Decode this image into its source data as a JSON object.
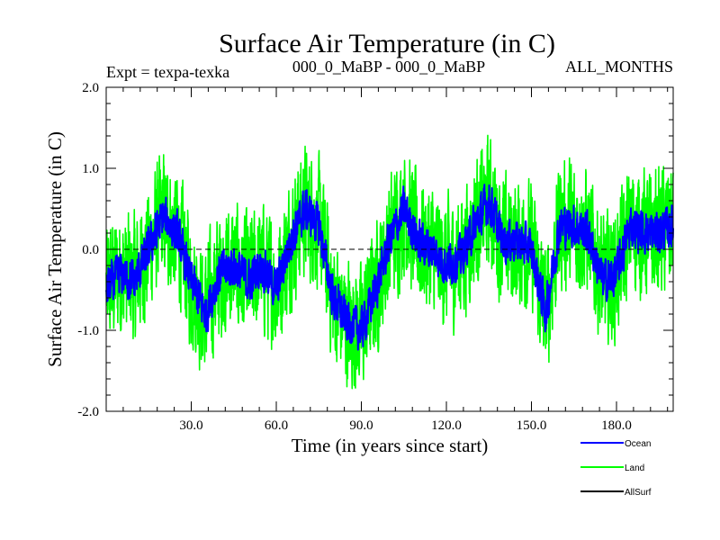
{
  "chart_data": {
    "type": "line",
    "title": "Surface Air Temperature (in C)",
    "subtitle_left": "Expt = texpa-texka",
    "subtitle_center": "000_0_MaBP - 000_0_MaBP",
    "subtitle_right": "ALL_MONTHS",
    "xlabel": "Time (in years since start)",
    "ylabel": "Surface Air Temperature (in C)",
    "xlim": [
      0,
      200
    ],
    "ylim": [
      -2.0,
      2.0
    ],
    "x_ticks": [
      30,
      60,
      90,
      120,
      150,
      180
    ],
    "x_tick_labels": [
      "30.0",
      "60.0",
      "90.0",
      "120.0",
      "150.0",
      "180.0"
    ],
    "y_ticks": [
      -2,
      -1,
      0,
      1,
      2
    ],
    "y_tick_labels": [
      "-2.0",
      "-1.0",
      "0.0",
      "1.0",
      "2.0"
    ],
    "zero_line": true,
    "series": [
      {
        "name": "Land",
        "color": "#00ff00",
        "x": [
          0,
          5,
          10,
          15,
          20,
          25,
          30,
          35,
          40,
          45,
          50,
          55,
          60,
          65,
          70,
          75,
          80,
          85,
          90,
          95,
          100,
          105,
          110,
          115,
          120,
          125,
          130,
          135,
          140,
          145,
          150,
          155,
          160,
          165,
          170,
          175,
          180,
          185,
          190,
          195,
          200
        ],
        "values": [
          -0.5,
          -0.3,
          -0.4,
          0.0,
          0.4,
          0.2,
          -0.4,
          -0.8,
          -0.3,
          -0.2,
          -0.4,
          -0.2,
          -0.5,
          0.1,
          0.5,
          0.3,
          -0.6,
          -0.9,
          -1.0,
          -0.5,
          0.1,
          0.5,
          0.1,
          0.0,
          -0.2,
          -0.1,
          0.3,
          0.6,
          0.1,
          0.1,
          0.0,
          -0.8,
          0.3,
          0.3,
          0.2,
          -0.4,
          -0.3,
          0.3,
          0.2,
          0.2,
          0.3
        ],
        "noise_amplitude": 0.85
      },
      {
        "name": "Ocean",
        "color": "#0000ff",
        "x": [
          0,
          5,
          10,
          15,
          20,
          25,
          30,
          35,
          40,
          45,
          50,
          55,
          60,
          65,
          70,
          75,
          80,
          85,
          90,
          95,
          100,
          105,
          110,
          115,
          120,
          125,
          130,
          135,
          140,
          145,
          150,
          155,
          160,
          165,
          170,
          175,
          180,
          185,
          190,
          195,
          200
        ],
        "values": [
          -0.5,
          -0.3,
          -0.4,
          0.0,
          0.4,
          0.2,
          -0.4,
          -0.8,
          -0.3,
          -0.2,
          -0.4,
          -0.2,
          -0.5,
          0.1,
          0.5,
          0.3,
          -0.6,
          -0.9,
          -1.0,
          -0.5,
          0.1,
          0.5,
          0.1,
          0.0,
          -0.2,
          -0.1,
          0.3,
          0.6,
          0.1,
          0.1,
          0.0,
          -0.8,
          0.3,
          0.3,
          0.2,
          -0.4,
          -0.3,
          0.3,
          0.2,
          0.2,
          0.3
        ],
        "noise_amplitude": 0.22
      },
      {
        "name": "AllSurf",
        "color": "#000000",
        "x": [],
        "values": []
      }
    ],
    "legend": {
      "placement": "bottom-right",
      "entries": [
        {
          "label": "Ocean",
          "color": "#0000ff"
        },
        {
          "label": "Land",
          "color": "#00ff00"
        },
        {
          "label": "AllSurf",
          "color": "#000000"
        }
      ]
    }
  }
}
